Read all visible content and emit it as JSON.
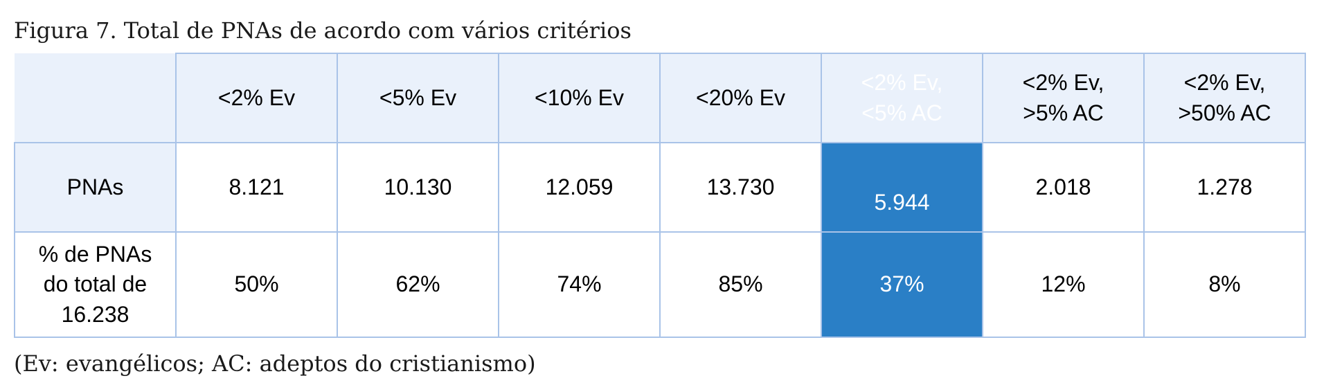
{
  "caption": "Figura 7. Total de PNAs de acordo com vários critérios",
  "table": {
    "columns": [
      "<2% Ev",
      "<5% Ev",
      "<10% Ev",
      "<20% Ev",
      "<2% Ev,\n<5% AC",
      "<2% Ev,\n>5% AC",
      "<2% Ev,\n>50% AC"
    ],
    "rows": [
      {
        "label": "PNAs",
        "values": [
          "8.121",
          "10.130",
          "12.059",
          "13.730",
          "5.944",
          "2.018",
          "1.278"
        ]
      },
      {
        "label": "% de PNAs\ndo total de\n16.238",
        "values": [
          "50%",
          "62%",
          "74%",
          "85%",
          "37%",
          "12%",
          "8%"
        ]
      }
    ],
    "highlight_color": "#2a7fc6",
    "header_bg": "#eaf1fb",
    "border_color": "#a9c3e8"
  },
  "note": "(Ev: evangélicos; AC: adeptos do cristianismo)"
}
